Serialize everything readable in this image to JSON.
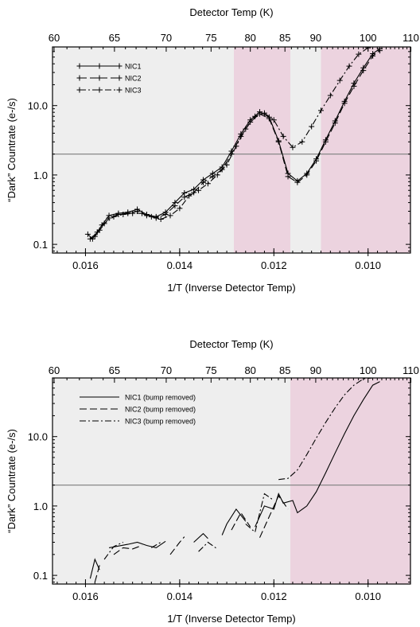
{
  "colors": {
    "gray_region": "#eeeeee",
    "pink_region": "#ecd3df",
    "threshold_line": "#888888",
    "data": "#000000"
  },
  "chart_data": [
    {
      "type": "line",
      "x_axis_kind": "inverse-temperature",
      "xlabel": "1/T (Inverse Detector Temp)",
      "ylabel": "“Dark” Countrate (e-/s)",
      "top_xlabel": "Detector Temp (K)",
      "xlim": [
        0.0167,
        0.0091
      ],
      "ylim": [
        0.075,
        70
      ],
      "y_scale": "log",
      "x_tick_values": [
        0.016,
        0.014,
        0.012,
        0.01
      ],
      "x_tick_labels": [
        "0.016",
        "0.014",
        "0.012",
        "0.010"
      ],
      "y_tick_values": [
        0.1,
        1.0,
        10.0
      ],
      "y_tick_labels": [
        "0.1",
        "1.0",
        "10.0"
      ],
      "top_tick_values": [
        60,
        65,
        70,
        75,
        80,
        85,
        90,
        100,
        110
      ],
      "top_tick_labels": [
        "60",
        "65",
        "70",
        "75",
        "80",
        "85",
        "90",
        "100",
        "110"
      ],
      "threshold": 2.0,
      "regions": [
        {
          "color": "gray",
          "x_start": 0.0167,
          "x_end": 0.01285
        },
        {
          "color": "pink",
          "x_start": 0.01285,
          "x_end": 0.01165
        },
        {
          "color": "gray",
          "x_start": 0.01165,
          "x_end": 0.011
        },
        {
          "color": "pink",
          "x_start": 0.011,
          "x_end": 0.0091
        }
      ],
      "legend": {
        "position": "top-left",
        "entries": [
          "NIC1",
          "NIC2",
          "NIC3"
        ]
      },
      "series": [
        {
          "name": "NIC1",
          "dash": "solid",
          "markers": true,
          "x": [
            0.01595,
            0.01585,
            0.01575,
            0.01565,
            0.0155,
            0.0153,
            0.0151,
            0.0149,
            0.0147,
            0.0145,
            0.0143,
            0.0141,
            0.0139,
            0.0137,
            0.0135,
            0.0133,
            0.0131,
            0.0129,
            0.0127,
            0.0125,
            0.0123,
            0.0121,
            0.0119,
            0.0117,
            0.0115,
            0.0113,
            0.0111,
            0.0109,
            0.0107,
            0.0105,
            0.0103,
            0.0101,
            0.0099,
            0.00975
          ],
          "y": [
            0.14,
            0.12,
            0.15,
            0.19,
            0.26,
            0.28,
            0.29,
            0.32,
            0.27,
            0.25,
            0.29,
            0.4,
            0.55,
            0.62,
            0.85,
            1.05,
            1.3,
            2.2,
            3.9,
            6.2,
            8.1,
            6.8,
            3.1,
            1.05,
            0.82,
            1.05,
            1.7,
            3.2,
            6.0,
            11.5,
            21.0,
            35.0,
            56.0,
            66.0
          ]
        },
        {
          "name": "NIC2",
          "dash": "long-dash",
          "markers": true,
          "x": [
            0.0159,
            0.0157,
            0.0155,
            0.0153,
            0.0151,
            0.0149,
            0.0147,
            0.0145,
            0.0143,
            0.0141,
            0.0139,
            0.0137,
            0.0135,
            0.0133,
            0.0131,
            0.0129,
            0.0127,
            0.0125,
            0.0123,
            0.0121,
            0.0119,
            0.0117,
            0.0115,
            0.0113,
            0.0111,
            0.0109,
            0.0107,
            0.0105,
            0.0103,
            0.0101,
            0.0099,
            0.00975
          ],
          "y": [
            0.12,
            0.16,
            0.24,
            0.27,
            0.28,
            0.3,
            0.26,
            0.24,
            0.27,
            0.36,
            0.48,
            0.56,
            0.78,
            0.95,
            1.2,
            2.0,
            3.6,
            5.8,
            7.6,
            6.5,
            3.0,
            0.95,
            0.78,
            1.0,
            1.6,
            3.0,
            5.6,
            10.8,
            19.0,
            32.0,
            52.0,
            62.0
          ]
        },
        {
          "name": "NIC3",
          "dash": "dash-dot",
          "markers": true,
          "x": [
            0.0158,
            0.0156,
            0.0154,
            0.0152,
            0.015,
            0.0148,
            0.0146,
            0.0144,
            0.0142,
            0.014,
            0.0138,
            0.0136,
            0.0134,
            0.0132,
            0.013,
            0.0128,
            0.0126,
            0.0124,
            0.0122,
            0.012,
            0.0118,
            0.0116,
            0.0114,
            0.0112,
            0.011,
            0.0108,
            0.0106,
            0.0104,
            0.0102,
            0.01
          ],
          "y": [
            0.13,
            0.2,
            0.25,
            0.27,
            0.28,
            0.28,
            0.25,
            0.23,
            0.26,
            0.33,
            0.5,
            0.6,
            0.75,
            1.0,
            1.4,
            2.6,
            4.6,
            7.0,
            7.8,
            6.2,
            3.6,
            2.5,
            3.0,
            5.0,
            8.5,
            14.0,
            23.0,
            37.0,
            55.0,
            68.0
          ]
        }
      ]
    },
    {
      "type": "line",
      "x_axis_kind": "inverse-temperature",
      "xlabel": "1/T (Inverse Detector Temp)",
      "ylabel": "“Dark” Countrate (e-/s)",
      "top_xlabel": "Detector Temp (K)",
      "xlim": [
        0.0167,
        0.0091
      ],
      "ylim": [
        0.075,
        70
      ],
      "y_scale": "log",
      "x_tick_values": [
        0.016,
        0.014,
        0.012,
        0.01
      ],
      "x_tick_labels": [
        "0.016",
        "0.014",
        "0.012",
        "0.010"
      ],
      "y_tick_values": [
        0.1,
        1.0,
        10.0
      ],
      "y_tick_labels": [
        "0.1",
        "1.0",
        "10.0"
      ],
      "top_tick_values": [
        60,
        65,
        70,
        75,
        80,
        85,
        90,
        100,
        110
      ],
      "top_tick_labels": [
        "60",
        "65",
        "70",
        "75",
        "80",
        "85",
        "90",
        "100",
        "110"
      ],
      "threshold": 2.0,
      "regions": [
        {
          "color": "gray",
          "x_start": 0.0167,
          "x_end": 0.01165
        },
        {
          "color": "pink",
          "x_start": 0.01165,
          "x_end": 0.011
        },
        {
          "color": "pink",
          "x_start": 0.011,
          "x_end": 0.0091
        }
      ],
      "legend": {
        "position": "top-left",
        "entries": [
          "NIC1 (bump removed)",
          "NIC2 (bump removed)",
          "NIC3 (bump removed)"
        ]
      },
      "series": [
        {
          "name": "NIC1 (bump removed)",
          "dash": "solid",
          "markers": false,
          "segments": [
            {
              "x": [
                0.0159,
                0.0158,
                0.0157
              ],
              "y": [
                0.09,
                0.17,
                0.12
              ]
            },
            {
              "x": [
                0.0155,
                0.0151,
                0.0149,
                0.0147,
                0.0145,
                0.0143
              ],
              "y": [
                0.25,
                0.28,
                0.3,
                0.27,
                0.25,
                0.31
              ]
            },
            {
              "x": [
                0.0137,
                0.0135,
                0.0134
              ],
              "y": [
                0.3,
                0.4,
                0.34
              ]
            },
            {
              "x": [
                0.0131,
                0.013,
                0.0128,
                0.0126
              ],
              "y": [
                0.38,
                0.55,
                0.9,
                0.6
              ]
            },
            {
              "x": [
                0.0124,
                0.0122,
                0.012,
                0.0119,
                0.0118,
                0.0116,
                0.0115,
                0.0113,
                0.0111,
                0.0109,
                0.0107,
                0.0105,
                0.0103,
                0.0101,
                0.0099,
                0.00975
              ],
              "y": [
                0.5,
                1.0,
                0.9,
                1.5,
                1.1,
                1.2,
                0.8,
                1.0,
                1.6,
                3.0,
                5.8,
                11.0,
                20.0,
                34.0,
                55.0,
                62.0
              ]
            }
          ]
        },
        {
          "name": "NIC2 (bump removed)",
          "dash": "long-dash",
          "markers": false,
          "segments": [
            {
              "x": [
                0.0158,
                0.0157
              ],
              "y": [
                0.08,
                0.14
              ]
            },
            {
              "x": [
                0.0154,
                0.0152,
                0.015,
                0.0148
              ],
              "y": [
                0.2,
                0.25,
                0.24,
                0.27
              ]
            },
            {
              "x": [
                0.0142,
                0.014,
                0.0139
              ],
              "y": [
                0.2,
                0.3,
                0.36
              ]
            },
            {
              "x": [
                0.0129,
                0.0127,
                0.0125
              ],
              "y": [
                0.45,
                0.8,
                0.5
              ]
            },
            {
              "x": [
                0.0123,
                0.0121,
                0.0119,
                0.0117
              ],
              "y": [
                0.35,
                0.7,
                1.4,
                0.9
              ]
            }
          ]
        },
        {
          "name": "NIC3 (bump removed)",
          "dash": "dash-dot",
          "markers": false,
          "segments": [
            {
              "x": [
                0.0156,
                0.0154,
                0.0152
              ],
              "y": [
                0.17,
                0.26,
                0.3
              ]
            },
            {
              "x": [
                0.0146,
                0.0144
              ],
              "y": [
                0.25,
                0.3
              ]
            },
            {
              "x": [
                0.0136,
                0.0134,
                0.0132
              ],
              "y": [
                0.22,
                0.3,
                0.24
              ]
            },
            {
              "x": [
                0.0126,
                0.0124,
                0.0122,
                0.012
              ],
              "y": [
                0.55,
                0.42,
                1.5,
                1.2
              ]
            },
            {
              "x": [
                0.0119,
                0.0117,
                0.0115,
                0.0113,
                0.0111,
                0.0109,
                0.0107,
                0.0105,
                0.0103,
                0.0101,
                0.0099
              ],
              "y": [
                2.4,
                2.5,
                3.3,
                5.5,
                9.5,
                16.0,
                26.0,
                40.0,
                55.0,
                68.0,
                70.0
              ]
            }
          ]
        }
      ]
    }
  ]
}
